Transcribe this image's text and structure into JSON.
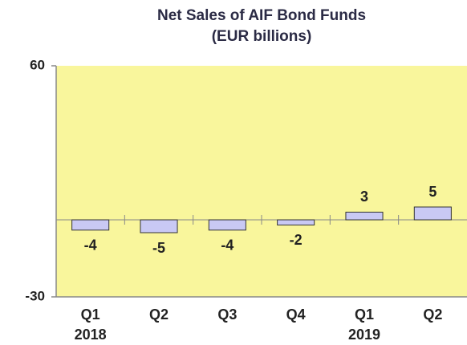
{
  "chart_data": {
    "type": "bar",
    "title": "Net Sales of AIF Bond Funds",
    "subtitle": "(EUR billions)",
    "categories": [
      [
        "Q1",
        "2018"
      ],
      [
        "Q2"
      ],
      [
        "Q3"
      ],
      [
        "Q4"
      ],
      [
        "Q1",
        "2019"
      ],
      [
        "Q2"
      ]
    ],
    "values": [
      -4,
      -5,
      -4,
      -2,
      3,
      5
    ],
    "color": "#c9c9f4",
    "ylim": [
      -30,
      60
    ],
    "yticks": [
      -30,
      60
    ],
    "grid": false
  }
}
